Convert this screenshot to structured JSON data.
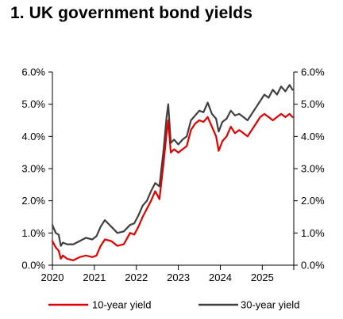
{
  "title": "1. UK government bond yields",
  "chart_data": {
    "type": "line",
    "title": "1. UK government bond yields",
    "xlabel": "",
    "ylabel": "",
    "x_ticks": [
      "2020",
      "2021",
      "2022",
      "2023",
      "2024",
      "2025"
    ],
    "x_range": [
      2020.0,
      2025.75
    ],
    "ylim": [
      0,
      6
    ],
    "y_ticks": [
      "0.0%",
      "1.0%",
      "2.0%",
      "3.0%",
      "4.0%",
      "5.0%",
      "6.0%"
    ],
    "y_axes": [
      "left",
      "right"
    ],
    "grid": false,
    "legend_position": "bottom",
    "series": [
      {
        "name": "10-year yield",
        "color": "#e00000",
        "x": [
          2020.0,
          2020.08,
          2020.15,
          2020.2,
          2020.25,
          2020.35,
          2020.5,
          2020.65,
          2020.8,
          2020.95,
          2021.05,
          2021.15,
          2021.25,
          2021.4,
          2021.55,
          2021.7,
          2021.85,
          2021.95,
          2022.05,
          2022.15,
          2022.25,
          2022.35,
          2022.45,
          2022.55,
          2022.65,
          2022.72,
          2022.76,
          2022.82,
          2022.9,
          2023.0,
          2023.1,
          2023.2,
          2023.3,
          2023.4,
          2023.5,
          2023.6,
          2023.7,
          2023.8,
          2023.9,
          2023.96,
          2024.05,
          2024.15,
          2024.25,
          2024.35,
          2024.45,
          2024.55,
          2024.65,
          2024.75,
          2024.85,
          2024.95,
          2025.05,
          2025.15,
          2025.25,
          2025.35,
          2025.45,
          2025.55,
          2025.65,
          2025.72
        ],
        "values": [
          0.75,
          0.55,
          0.45,
          0.2,
          0.3,
          0.2,
          0.15,
          0.25,
          0.3,
          0.25,
          0.3,
          0.6,
          0.8,
          0.75,
          0.6,
          0.65,
          1.0,
          0.95,
          1.2,
          1.5,
          1.75,
          2.0,
          2.3,
          2.05,
          3.2,
          4.1,
          4.5,
          3.5,
          3.6,
          3.5,
          3.6,
          3.7,
          4.2,
          4.4,
          4.5,
          4.45,
          4.6,
          4.3,
          4.0,
          3.55,
          3.85,
          4.0,
          4.3,
          4.1,
          4.2,
          4.1,
          4.0,
          4.2,
          4.4,
          4.6,
          4.7,
          4.6,
          4.5,
          4.6,
          4.7,
          4.6,
          4.7,
          4.6
        ]
      },
      {
        "name": "30-year yield",
        "color": "#404040",
        "x": [
          2020.0,
          2020.08,
          2020.15,
          2020.2,
          2020.25,
          2020.35,
          2020.5,
          2020.65,
          2020.8,
          2020.95,
          2021.05,
          2021.15,
          2021.25,
          2021.4,
          2021.55,
          2021.7,
          2021.85,
          2021.95,
          2022.05,
          2022.15,
          2022.25,
          2022.35,
          2022.45,
          2022.55,
          2022.65,
          2022.72,
          2022.76,
          2022.82,
          2022.9,
          2023.0,
          2023.1,
          2023.2,
          2023.3,
          2023.4,
          2023.5,
          2023.6,
          2023.7,
          2023.8,
          2023.9,
          2023.96,
          2024.05,
          2024.15,
          2024.25,
          2024.35,
          2024.45,
          2024.55,
          2024.65,
          2024.75,
          2024.85,
          2024.95,
          2025.05,
          2025.15,
          2025.25,
          2025.35,
          2025.45,
          2025.55,
          2025.65,
          2025.72
        ],
        "values": [
          1.25,
          1.0,
          0.95,
          0.6,
          0.7,
          0.65,
          0.65,
          0.75,
          0.85,
          0.8,
          0.9,
          1.2,
          1.4,
          1.2,
          1.0,
          1.05,
          1.25,
          1.3,
          1.55,
          1.85,
          2.0,
          2.3,
          2.55,
          2.45,
          3.6,
          4.6,
          5.0,
          3.8,
          3.9,
          3.75,
          3.9,
          4.0,
          4.5,
          4.65,
          4.8,
          4.75,
          5.05,
          4.7,
          4.55,
          4.15,
          4.45,
          4.55,
          4.8,
          4.65,
          4.7,
          4.6,
          4.5,
          4.7,
          4.9,
          5.1,
          5.3,
          5.2,
          5.45,
          5.3,
          5.55,
          5.4,
          5.6,
          5.45
        ]
      }
    ]
  }
}
